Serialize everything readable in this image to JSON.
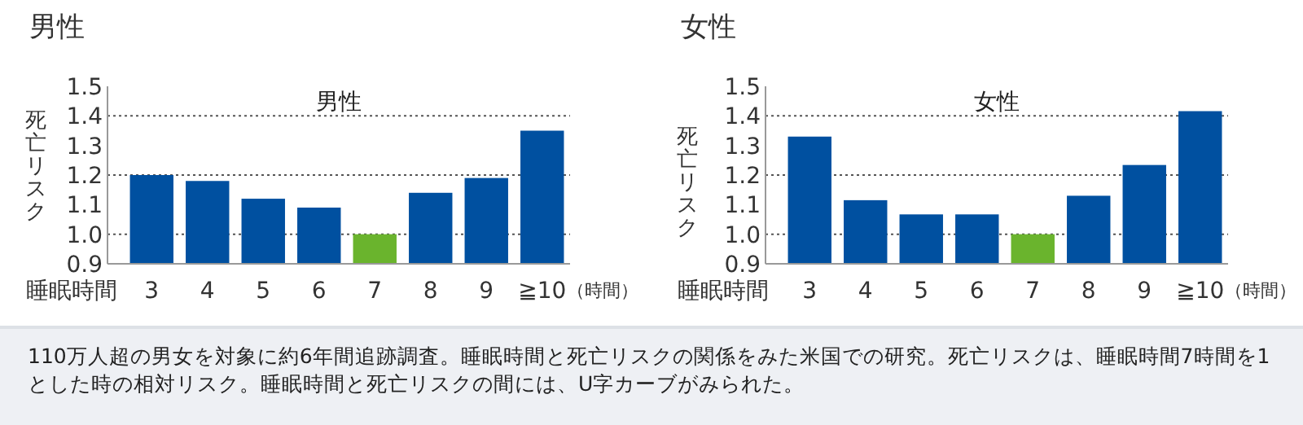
{
  "chart_data": [
    {
      "type": "bar",
      "title": "男性",
      "subtitle": "男性",
      "ylabel": "死亡リスク",
      "xlabel": "睡眠時間",
      "categories": [
        "3",
        "4",
        "5",
        "6",
        "7",
        "8",
        "9",
        "≧10"
      ],
      "values": [
        1.2,
        1.18,
        1.12,
        1.09,
        1.0,
        1.14,
        1.19,
        1.35
      ],
      "colors": [
        "#0050a0",
        "#0050a0",
        "#0050a0",
        "#0050a0",
        "#6ab42d",
        "#0050a0",
        "#0050a0",
        "#0050a0"
      ],
      "ylim": [
        0.9,
        1.5
      ],
      "yticks": [
        {
          "value": 0.9,
          "label": "0.9"
        },
        {
          "value": 1.0,
          "label": "1.0"
        },
        {
          "value": 1.1,
          "label": "1.1"
        },
        {
          "value": 1.2,
          "label": "1.2"
        },
        {
          "value": 1.3,
          "label": "1.3"
        },
        {
          "value": 1.4,
          "label": "1.4"
        },
        {
          "value": 1.5,
          "label": "1.5"
        }
      ],
      "ref_lines": [
        {
          "axis": "y",
          "value": 1.0,
          "line_style": "dotted",
          "color": "#555555"
        },
        {
          "axis": "y",
          "value": 1.2,
          "line_style": "dotted",
          "color": "#555555"
        },
        {
          "axis": "y",
          "value": 1.4,
          "line_style": "dotted",
          "color": "#555555"
        }
      ],
      "annotations": [
        "（時間）",
        "110万人超の男女を対象に約6年間追跡調査。睡眠時間と死亡リスクの関係をみた米国での研究。死亡リスクは、睡眠時間7時間を1とした時の相対リスク。睡眠時間と死亡リスクの間には、U字カーブがみられた。"
      ]
    },
    {
      "type": "bar",
      "title": "女性",
      "subtitle": "女性",
      "ylabel": "死亡リスク",
      "xlabel": "睡眠時間",
      "categories": [
        "3",
        "4",
        "5",
        "6",
        "7",
        "8",
        "9",
        "≧10"
      ],
      "values": [
        1.33,
        1.115,
        1.067,
        1.067,
        1.0,
        1.13,
        1.234,
        1.416
      ],
      "colors": [
        "#0050a0",
        "#0050a0",
        "#0050a0",
        "#0050a0",
        "#6ab42d",
        "#0050a0",
        "#0050a0",
        "#0050a0"
      ],
      "ylim": [
        0.9,
        1.5
      ],
      "yticks": [
        {
          "value": 0.9,
          "label": "0.9"
        },
        {
          "value": 1.0,
          "label": "1.0"
        },
        {
          "value": 1.1,
          "label": "1.1"
        },
        {
          "value": 1.2,
          "label": "1.2"
        },
        {
          "value": 1.3,
          "label": "1.3"
        },
        {
          "value": 1.4,
          "label": "1.4"
        },
        {
          "value": 1.5,
          "label": "1.5"
        }
      ],
      "ref_lines": [
        {
          "axis": "y",
          "value": 1.0,
          "line_style": "dotted",
          "color": "#555555"
        },
        {
          "axis": "y",
          "value": 1.2,
          "line_style": "dotted",
          "color": "#555555"
        },
        {
          "axis": "y",
          "value": 1.4,
          "line_style": "dotted",
          "color": "#555555"
        }
      ],
      "annotations": [
        "（時間）"
      ]
    }
  ]
}
